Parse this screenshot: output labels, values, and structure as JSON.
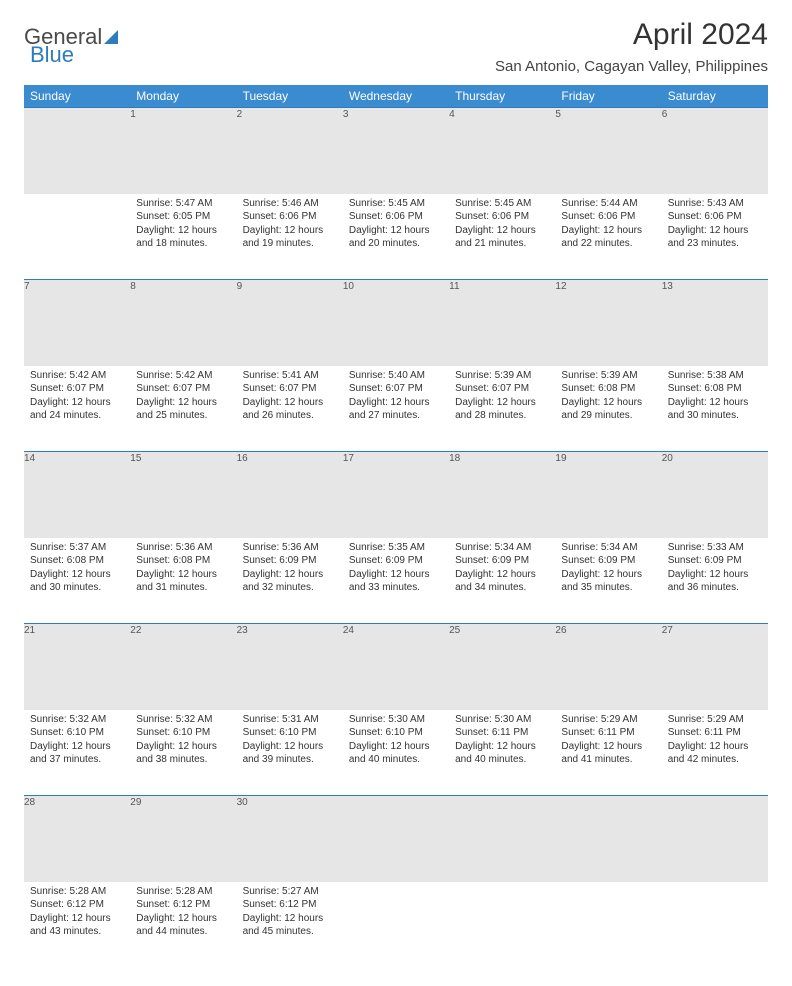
{
  "logo": {
    "part1": "General",
    "part2": "Blue"
  },
  "title": "April 2024",
  "location": "San Antonio, Cagayan Valley, Philippines",
  "colors": {
    "header_bg": "#3a8bd0",
    "header_text": "#ffffff",
    "daynum_bg": "#e6e6e6",
    "rule": "#2e7cc0",
    "logo_blue": "#2e7cc0",
    "text": "#333333"
  },
  "weekdays": [
    "Sunday",
    "Monday",
    "Tuesday",
    "Wednesday",
    "Thursday",
    "Friday",
    "Saturday"
  ],
  "weeks": [
    [
      null,
      {
        "n": "1",
        "sr": "5:47 AM",
        "ss": "6:05 PM",
        "dl": "12 hours and 18 minutes."
      },
      {
        "n": "2",
        "sr": "5:46 AM",
        "ss": "6:06 PM",
        "dl": "12 hours and 19 minutes."
      },
      {
        "n": "3",
        "sr": "5:45 AM",
        "ss": "6:06 PM",
        "dl": "12 hours and 20 minutes."
      },
      {
        "n": "4",
        "sr": "5:45 AM",
        "ss": "6:06 PM",
        "dl": "12 hours and 21 minutes."
      },
      {
        "n": "5",
        "sr": "5:44 AM",
        "ss": "6:06 PM",
        "dl": "12 hours and 22 minutes."
      },
      {
        "n": "6",
        "sr": "5:43 AM",
        "ss": "6:06 PM",
        "dl": "12 hours and 23 minutes."
      }
    ],
    [
      {
        "n": "7",
        "sr": "5:42 AM",
        "ss": "6:07 PM",
        "dl": "12 hours and 24 minutes."
      },
      {
        "n": "8",
        "sr": "5:42 AM",
        "ss": "6:07 PM",
        "dl": "12 hours and 25 minutes."
      },
      {
        "n": "9",
        "sr": "5:41 AM",
        "ss": "6:07 PM",
        "dl": "12 hours and 26 minutes."
      },
      {
        "n": "10",
        "sr": "5:40 AM",
        "ss": "6:07 PM",
        "dl": "12 hours and 27 minutes."
      },
      {
        "n": "11",
        "sr": "5:39 AM",
        "ss": "6:07 PM",
        "dl": "12 hours and 28 minutes."
      },
      {
        "n": "12",
        "sr": "5:39 AM",
        "ss": "6:08 PM",
        "dl": "12 hours and 29 minutes."
      },
      {
        "n": "13",
        "sr": "5:38 AM",
        "ss": "6:08 PM",
        "dl": "12 hours and 30 minutes."
      }
    ],
    [
      {
        "n": "14",
        "sr": "5:37 AM",
        "ss": "6:08 PM",
        "dl": "12 hours and 30 minutes."
      },
      {
        "n": "15",
        "sr": "5:36 AM",
        "ss": "6:08 PM",
        "dl": "12 hours and 31 minutes."
      },
      {
        "n": "16",
        "sr": "5:36 AM",
        "ss": "6:09 PM",
        "dl": "12 hours and 32 minutes."
      },
      {
        "n": "17",
        "sr": "5:35 AM",
        "ss": "6:09 PM",
        "dl": "12 hours and 33 minutes."
      },
      {
        "n": "18",
        "sr": "5:34 AM",
        "ss": "6:09 PM",
        "dl": "12 hours and 34 minutes."
      },
      {
        "n": "19",
        "sr": "5:34 AM",
        "ss": "6:09 PM",
        "dl": "12 hours and 35 minutes."
      },
      {
        "n": "20",
        "sr": "5:33 AM",
        "ss": "6:09 PM",
        "dl": "12 hours and 36 minutes."
      }
    ],
    [
      {
        "n": "21",
        "sr": "5:32 AM",
        "ss": "6:10 PM",
        "dl": "12 hours and 37 minutes."
      },
      {
        "n": "22",
        "sr": "5:32 AM",
        "ss": "6:10 PM",
        "dl": "12 hours and 38 minutes."
      },
      {
        "n": "23",
        "sr": "5:31 AM",
        "ss": "6:10 PM",
        "dl": "12 hours and 39 minutes."
      },
      {
        "n": "24",
        "sr": "5:30 AM",
        "ss": "6:10 PM",
        "dl": "12 hours and 40 minutes."
      },
      {
        "n": "25",
        "sr": "5:30 AM",
        "ss": "6:11 PM",
        "dl": "12 hours and 40 minutes."
      },
      {
        "n": "26",
        "sr": "5:29 AM",
        "ss": "6:11 PM",
        "dl": "12 hours and 41 minutes."
      },
      {
        "n": "27",
        "sr": "5:29 AM",
        "ss": "6:11 PM",
        "dl": "12 hours and 42 minutes."
      }
    ],
    [
      {
        "n": "28",
        "sr": "5:28 AM",
        "ss": "6:12 PM",
        "dl": "12 hours and 43 minutes."
      },
      {
        "n": "29",
        "sr": "5:28 AM",
        "ss": "6:12 PM",
        "dl": "12 hours and 44 minutes."
      },
      {
        "n": "30",
        "sr": "5:27 AM",
        "ss": "6:12 PM",
        "dl": "12 hours and 45 minutes."
      },
      null,
      null,
      null,
      null
    ]
  ],
  "labels": {
    "sunrise": "Sunrise:",
    "sunset": "Sunset:",
    "daylight": "Daylight:"
  }
}
